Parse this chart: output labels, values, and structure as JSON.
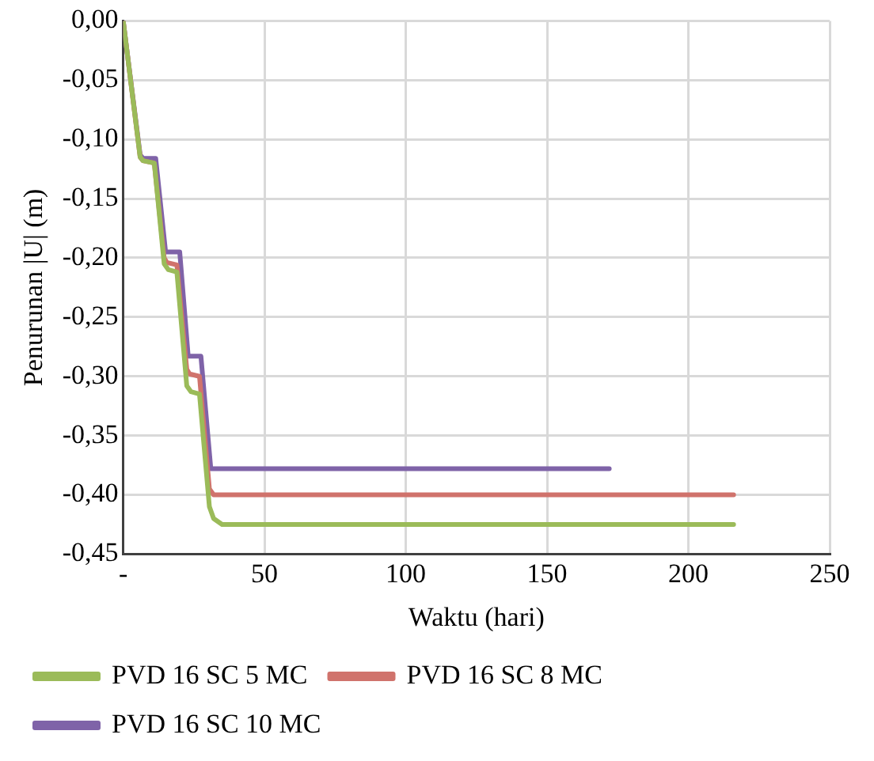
{
  "chart_data": {
    "type": "line",
    "xlabel": "Waktu (hari)",
    "ylabel": "Penurunan |U| (m)",
    "series": [
      {
        "name": "PVD 16 SC 5 MC",
        "color": "#9bbb59",
        "x": [
          0,
          6,
          7,
          11,
          14.5,
          16,
          19,
          22.5,
          24,
          27,
          30.5,
          32,
          35,
          216
        ],
        "values": [
          0,
          -0.115,
          -0.118,
          -0.12,
          -0.205,
          -0.21,
          -0.212,
          -0.308,
          -0.313,
          -0.315,
          -0.41,
          -0.42,
          -0.425,
          -0.425
        ]
      },
      {
        "name": "PVD 16 SC 8 MC",
        "color": "#d0736c",
        "x": [
          0,
          6,
          7,
          11,
          14.5,
          15.5,
          19,
          22.5,
          23.5,
          27,
          30.5,
          32,
          216
        ],
        "values": [
          0,
          -0.115,
          -0.118,
          -0.12,
          -0.2,
          -0.204,
          -0.206,
          -0.294,
          -0.298,
          -0.3,
          -0.395,
          -0.4,
          -0.4
        ]
      },
      {
        "name": "PVD 16 SC 10 MC",
        "color": "#7f63a8",
        "x": [
          0,
          6,
          7,
          11.5,
          15,
          20,
          23,
          27.5,
          31,
          172
        ],
        "values": [
          0,
          -0.113,
          -0.116,
          -0.116,
          -0.195,
          -0.195,
          -0.283,
          -0.283,
          -0.378,
          -0.378
        ]
      }
    ],
    "xlim": [
      0,
      250
    ],
    "xticks": [
      {
        "value": 0,
        "label": "-"
      },
      50,
      100,
      150,
      200,
      250
    ],
    "ylim": [
      -0.45,
      0
    ],
    "yticks": [
      {
        "value": 0,
        "label": "0,00"
      },
      {
        "value": -0.05,
        "label": "-0,05"
      },
      {
        "value": -0.1,
        "label": "-0,10"
      },
      {
        "value": -0.15,
        "label": "-0,15"
      },
      {
        "value": -0.2,
        "label": "-0,20"
      },
      {
        "value": -0.25,
        "label": "-0,25"
      },
      {
        "value": -0.3,
        "label": "-0,30"
      },
      {
        "value": -0.35,
        "label": "-0,35"
      },
      {
        "value": -0.4,
        "label": "-0,40"
      },
      {
        "value": -0.45,
        "label": "-0,45"
      }
    ],
    "grid": true,
    "legend": "bottom",
    "marker": "none",
    "line_style": "solid"
  }
}
